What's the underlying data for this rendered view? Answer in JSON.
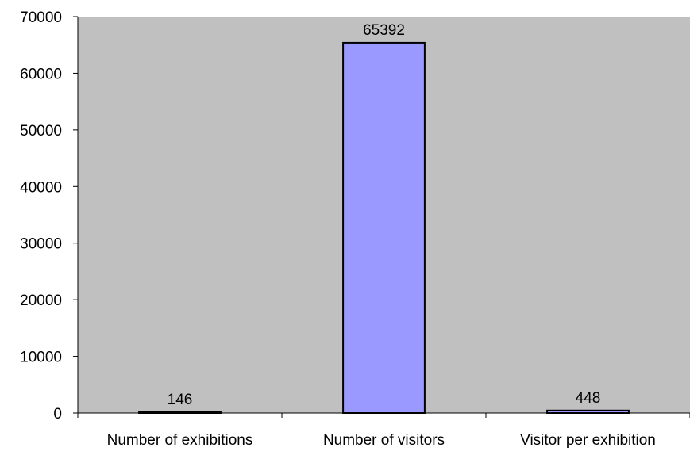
{
  "chart_data": {
    "type": "bar",
    "categories": [
      "Number of exhibitions",
      "Number of visitors",
      "Visitor per exhibition"
    ],
    "values": [
      146,
      65392,
      448
    ],
    "data_labels": [
      "146",
      "65392",
      "448"
    ],
    "title": "",
    "xlabel": "",
    "ylabel": "",
    "ylim": [
      0,
      70000
    ],
    "yticks": [
      0,
      10000,
      20000,
      30000,
      40000,
      50000,
      60000,
      70000
    ],
    "ytick_labels": [
      "0",
      "10000",
      "20000",
      "30000",
      "40000",
      "50000",
      "60000",
      "70000"
    ],
    "grid": false,
    "legend": "none",
    "colors": {
      "plot_background": "#c0c0c0",
      "bar_fill": "#9999ff",
      "bar_stroke": "#000000"
    }
  }
}
